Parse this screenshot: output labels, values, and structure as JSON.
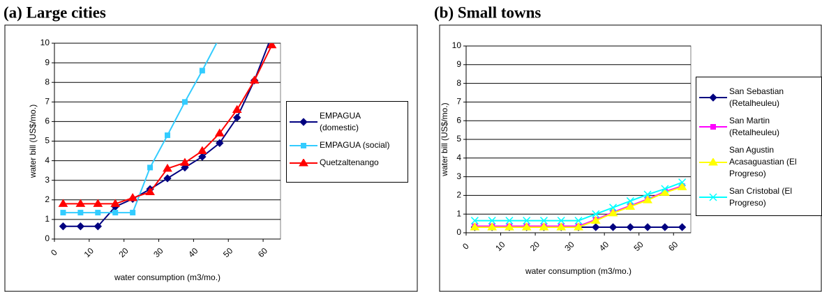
{
  "chart_data": [
    {
      "type": "line",
      "title": "(a) Large cities",
      "x_label": "water consumption (m3/mo.)",
      "y_label": "water bill (US$/mo.)",
      "x": [
        2.5,
        7.5,
        12.5,
        17.5,
        22.5,
        27.5,
        32.5,
        37.5,
        42.5,
        47.5,
        52.5,
        57.5,
        62.5
      ],
      "xlim": [
        0,
        65
      ],
      "xticks": [
        0,
        10,
        20,
        30,
        40,
        50,
        60
      ],
      "ylim": [
        0,
        10
      ],
      "yticks": [
        0,
        1,
        2,
        3,
        4,
        5,
        6,
        7,
        8,
        9,
        10
      ],
      "grid": true,
      "series": [
        {
          "name": "EMPAGUA (domestic)",
          "color": "#000080",
          "marker": "diamond",
          "values": [
            0.65,
            0.65,
            0.65,
            1.65,
            2.05,
            2.55,
            3.1,
            3.65,
            4.2,
            4.9,
            6.2,
            8.1,
            10.4
          ]
        },
        {
          "name": "EMPAGUA (social)",
          "color": "#33ccff",
          "marker": "square",
          "values": [
            1.35,
            1.35,
            1.35,
            1.35,
            1.35,
            3.65,
            5.3,
            7.0,
            8.6,
            10.3,
            null,
            null,
            null
          ]
        },
        {
          "name": "Quetzaltenango",
          "color": "#ff0000",
          "marker": "triangle",
          "values": [
            1.8,
            1.8,
            1.8,
            1.8,
            2.1,
            2.4,
            3.6,
            3.9,
            4.5,
            5.4,
            6.6,
            8.1,
            9.9
          ]
        }
      ]
    },
    {
      "type": "line",
      "title": "(b) Small towns",
      "x_label": "water consumption (m3/mo.)",
      "y_label": "water bill (US$/mo.)",
      "x": [
        2.5,
        7.5,
        12.5,
        17.5,
        22.5,
        27.5,
        32.5,
        37.5,
        42.5,
        47.5,
        52.5,
        57.5,
        62.5
      ],
      "xlim": [
        0,
        65
      ],
      "xticks": [
        0,
        10,
        20,
        30,
        40,
        50,
        60
      ],
      "ylim": [
        0,
        10
      ],
      "yticks": [
        0,
        1,
        2,
        3,
        4,
        5,
        6,
        7,
        8,
        9,
        10
      ],
      "grid": true,
      "series": [
        {
          "name": "San Sebastian (Retalheuleu)",
          "color": "#000080",
          "marker": "diamond",
          "values": [
            0.3,
            0.3,
            0.3,
            0.3,
            0.3,
            0.3,
            0.3,
            0.3,
            0.3,
            0.3,
            0.3,
            0.3,
            0.3
          ]
        },
        {
          "name": "San Martin (Retalheuleu)",
          "color": "#ff00ff",
          "marker": "square",
          "values": [
            0.35,
            0.35,
            0.35,
            0.35,
            0.35,
            0.35,
            0.35,
            0.7,
            1.1,
            1.45,
            1.8,
            2.2,
            2.5
          ]
        },
        {
          "name": "San Agustin Acasaguastian (El Progreso)",
          "color": "#ffff00",
          "marker": "triangle",
          "values": [
            0.3,
            0.3,
            0.3,
            0.3,
            0.3,
            0.3,
            0.3,
            0.65,
            1.05,
            1.4,
            1.75,
            2.15,
            2.45
          ]
        },
        {
          "name": "San Cristobal (El Progreso)",
          "color": "#00ffff",
          "marker": "cross",
          "values": [
            0.65,
            0.65,
            0.65,
            0.65,
            0.65,
            0.65,
            0.65,
            1.0,
            1.35,
            1.7,
            2.05,
            2.35,
            2.7
          ]
        }
      ]
    }
  ]
}
